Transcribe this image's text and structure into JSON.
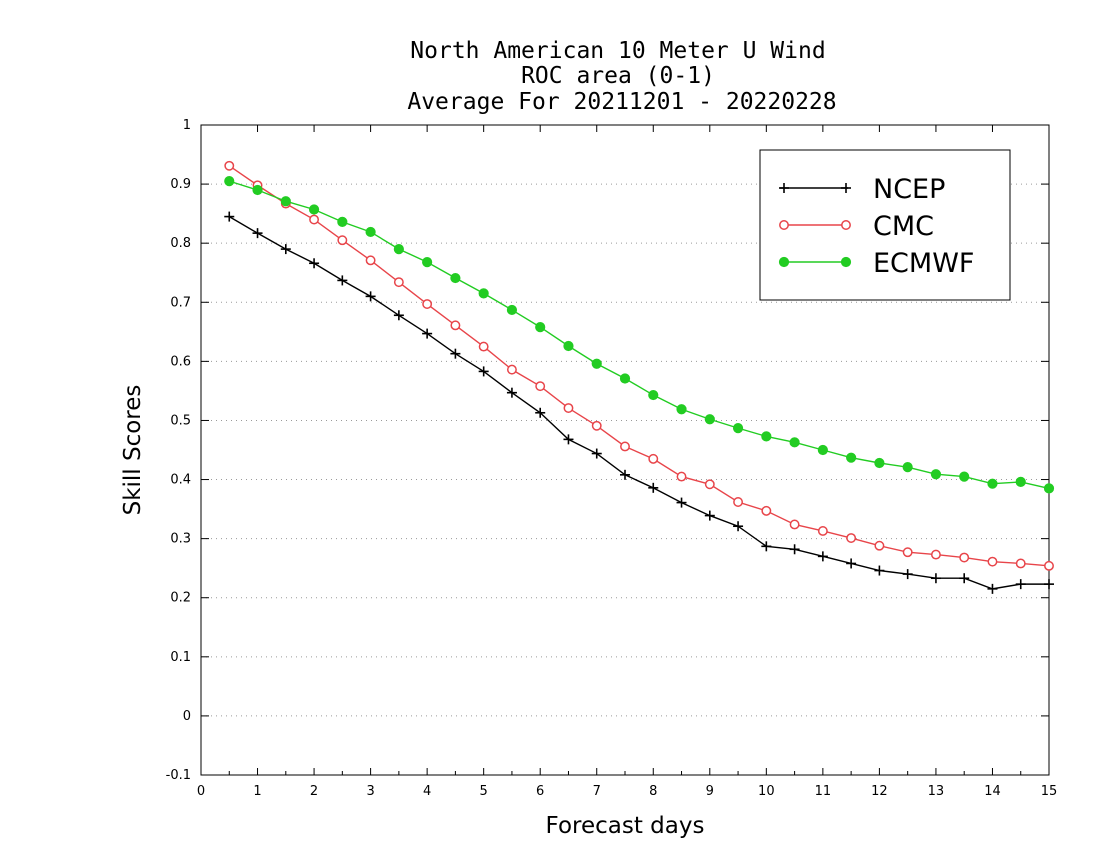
{
  "chart_data": {
    "type": "line",
    "title": [
      "North American 10 Meter U Wind",
      "ROC area (0-1)",
      "Average For 20211201 - 20220228"
    ],
    "xlabel": "Forecast days",
    "ylabel": "Skill Scores",
    "xlim": [
      0,
      15
    ],
    "ylim": [
      -0.1,
      1
    ],
    "x_ticks": [
      0,
      1,
      2,
      3,
      4,
      5,
      6,
      7,
      8,
      9,
      10,
      11,
      12,
      13,
      14,
      15
    ],
    "y_ticks": [
      -0.1,
      0,
      0.1,
      0.2,
      0.3,
      0.4,
      0.5,
      0.6,
      0.7,
      0.8,
      0.9,
      1
    ],
    "y_tick_labels": [
      "-0.1",
      "0",
      "0.1",
      "0.2",
      "0.3",
      "0.4",
      "0.5",
      "0.6",
      "0.7",
      "0.8",
      "0.9",
      "1"
    ],
    "grid": "horizontal dotted",
    "legend_position": "top-right",
    "x": [
      0.5,
      1,
      1.5,
      2,
      2.5,
      3,
      3.5,
      4,
      4.5,
      5,
      5.5,
      6,
      6.5,
      7,
      7.5,
      8,
      8.5,
      9,
      9.5,
      10,
      10.5,
      11,
      11.5,
      12,
      12.5,
      13,
      13.5,
      14,
      14.5,
      15
    ],
    "series": [
      {
        "name": "NCEP",
        "color": "#000000",
        "marker": "plus",
        "values": [
          0.845,
          0.817,
          0.79,
          0.766,
          0.737,
          0.71,
          0.678,
          0.647,
          0.613,
          0.583,
          0.547,
          0.513,
          0.468,
          0.444,
          0.408,
          0.386,
          0.361,
          0.339,
          0.321,
          0.287,
          0.282,
          0.27,
          0.258,
          0.246,
          0.24,
          0.233,
          0.233,
          0.215,
          0.223,
          0.223
        ]
      },
      {
        "name": "CMC",
        "color": "#e8454a",
        "marker": "open-circle",
        "values": [
          0.931,
          0.898,
          0.867,
          0.84,
          0.805,
          0.771,
          0.734,
          0.697,
          0.661,
          0.625,
          0.586,
          0.558,
          0.521,
          0.491,
          0.456,
          0.435,
          0.405,
          0.392,
          0.362,
          0.347,
          0.324,
          0.313,
          0.301,
          0.288,
          0.277,
          0.273,
          0.268,
          0.261,
          0.258,
          0.254
        ]
      },
      {
        "name": "ECMWF",
        "color": "#22cc22",
        "marker": "filled-circle",
        "values": [
          0.905,
          0.89,
          0.871,
          0.857,
          0.836,
          0.819,
          0.79,
          0.768,
          0.741,
          0.715,
          0.687,
          0.658,
          0.626,
          0.596,
          0.571,
          0.543,
          0.519,
          0.502,
          0.487,
          0.473,
          0.463,
          0.45,
          0.437,
          0.428,
          0.421,
          0.409,
          0.405,
          0.393,
          0.396,
          0.385
        ]
      }
    ]
  }
}
